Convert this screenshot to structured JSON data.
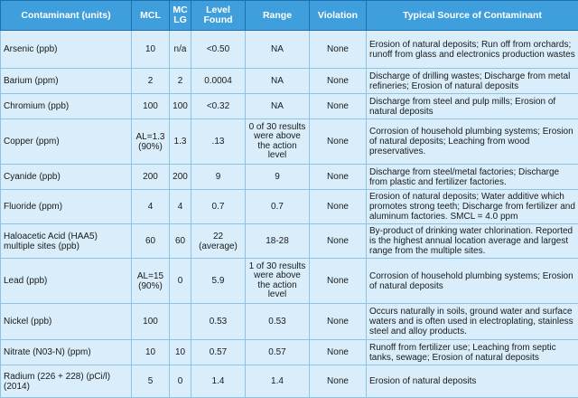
{
  "headers": [
    "Contaminant (units)",
    "MCL",
    "MC LG",
    "Level Found",
    "Range",
    "Violation",
    "Typical Source of Contaminant"
  ],
  "rows": [
    {
      "contaminant": "Arsenic (ppb)",
      "mcl": "10",
      "mclg": "n/a",
      "level": "<0.50",
      "range": "NA",
      "violation": "None",
      "source": "Erosion of natural deposits; Run off from orchards; runoff from glass and electronics production wastes"
    },
    {
      "contaminant": "Barium (ppm)",
      "mcl": "2",
      "mclg": "2",
      "level": "0.0004",
      "range": "NA",
      "violation": "None",
      "source": "Discharge of drilling wastes; Discharge from metal refineries; Erosion of natural deposits"
    },
    {
      "contaminant": "Chromium (ppb)",
      "mcl": "100",
      "mclg": "100",
      "level": "<0.32",
      "range": "NA",
      "violation": "None",
      "source": "Discharge from steel and pulp mills; Erosion of natural deposits"
    },
    {
      "contaminant": "Copper (ppm)",
      "mcl": "AL=1.3 (90%)",
      "mclg": "1.3",
      "level": ".13",
      "range": "0 of 30 results were above the action level",
      "violation": "None",
      "source": "Corrosion of household plumbing systems; Erosion of natural deposits; Leaching from wood preservatives."
    },
    {
      "contaminant": "Cyanide (ppb)",
      "mcl": "200",
      "mclg": "200",
      "level": "9",
      "range": "9",
      "violation": "None",
      "source": "Discharge from steel/metal factories; Discharge from plastic and fertilizer factories."
    },
    {
      "contaminant": "Fluoride (ppm)",
      "mcl": "4",
      "mclg": "4",
      "level": "0.7",
      "range": "0.7",
      "violation": "None",
      "source": "Erosion of natural deposits; Water additive which promotes strong teeth; Discharge from fertilizer and aluminum factories.  SMCL = 4.0 ppm"
    },
    {
      "contaminant": "Haloacetic Acid (HAA5) multiple sites (ppb)",
      "mcl": "60",
      "mclg": "60",
      "level": "22 (average)",
      "range": "18-28",
      "violation": "None",
      "source": "By-product of drinking water chlorination. Reported is the highest annual location average and largest range from the multiple sites."
    },
    {
      "contaminant": "Lead (ppb)",
      "mcl": "AL=15 (90%)",
      "mclg": "0",
      "level": "5.9",
      "range": "1 of 30 results were above the action level",
      "violation": "None",
      "source": "Corrosion of household plumbing systems; Erosion of natural deposits"
    },
    {
      "contaminant": "Nickel (ppb)",
      "mcl": "100",
      "mclg": "",
      "level": "0.53",
      "range": "0.53",
      "violation": "None",
      "source": "Occurs naturally in soils, ground water and surface waters and is often used in electroplating, stainless steel and alloy products."
    },
    {
      "contaminant": "Nitrate (N03-N) (ppm)",
      "mcl": "10",
      "mclg": "10",
      "level": "0.57",
      "range": "0.57",
      "violation": "None",
      "source": "Runoff from fertilizer use; Leaching from septic tanks, sewage; Erosion of natural deposits"
    },
    {
      "contaminant": "Radium (226 + 228) (pCi/l) (2014)",
      "mcl": "5",
      "mclg": "0",
      "level": "1.4",
      "range": "1.4",
      "violation": "None",
      "source": "Erosion of natural deposits"
    }
  ]
}
